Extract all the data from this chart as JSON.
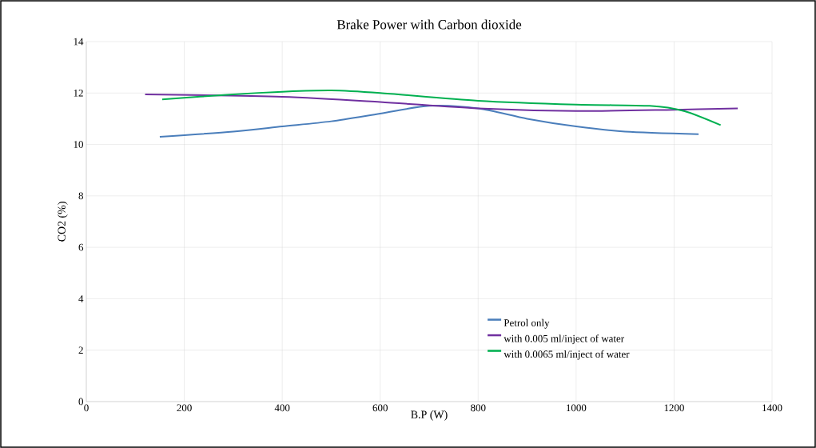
{
  "chart_data": {
    "type": "line",
    "title": "Brake Power with Carbon dioxide",
    "xlabel": "B.P (W)",
    "ylabel": "CO2 (%)",
    "xlim": [
      0,
      1400
    ],
    "xticks": [
      0,
      200,
      400,
      600,
      800,
      1000,
      1200,
      1400
    ],
    "ylim": [
      0,
      14
    ],
    "yticks": [
      0,
      2,
      4,
      6,
      8,
      10,
      12,
      14
    ],
    "grid": true,
    "legend": "right",
    "series": [
      {
        "name": "Petrol only",
        "color": "#4a7ebb",
        "x": [
          150,
          300,
          400,
          500,
          600,
          700,
          800,
          900,
          1000,
          1100,
          1250
        ],
        "values": [
          10.3,
          10.5,
          10.7,
          10.9,
          11.2,
          11.5,
          11.4,
          11.0,
          10.7,
          10.5,
          10.4
        ]
      },
      {
        "name": "with 0.005 ml/inject of water",
        "color": "#7030a0",
        "x": [
          120,
          400,
          600,
          800,
          1000,
          1200,
          1330
        ],
        "values": [
          11.95,
          11.85,
          11.65,
          11.4,
          11.3,
          11.35,
          11.4
        ]
      },
      {
        "name": "with 0.0065 ml/inject of water",
        "color": "#00b050",
        "x": [
          155,
          300,
          400,
          500,
          600,
          800,
          1000,
          1150,
          1220,
          1295
        ],
        "values": [
          11.75,
          11.95,
          12.05,
          12.1,
          12.0,
          11.7,
          11.55,
          11.5,
          11.3,
          10.75
        ]
      }
    ]
  }
}
